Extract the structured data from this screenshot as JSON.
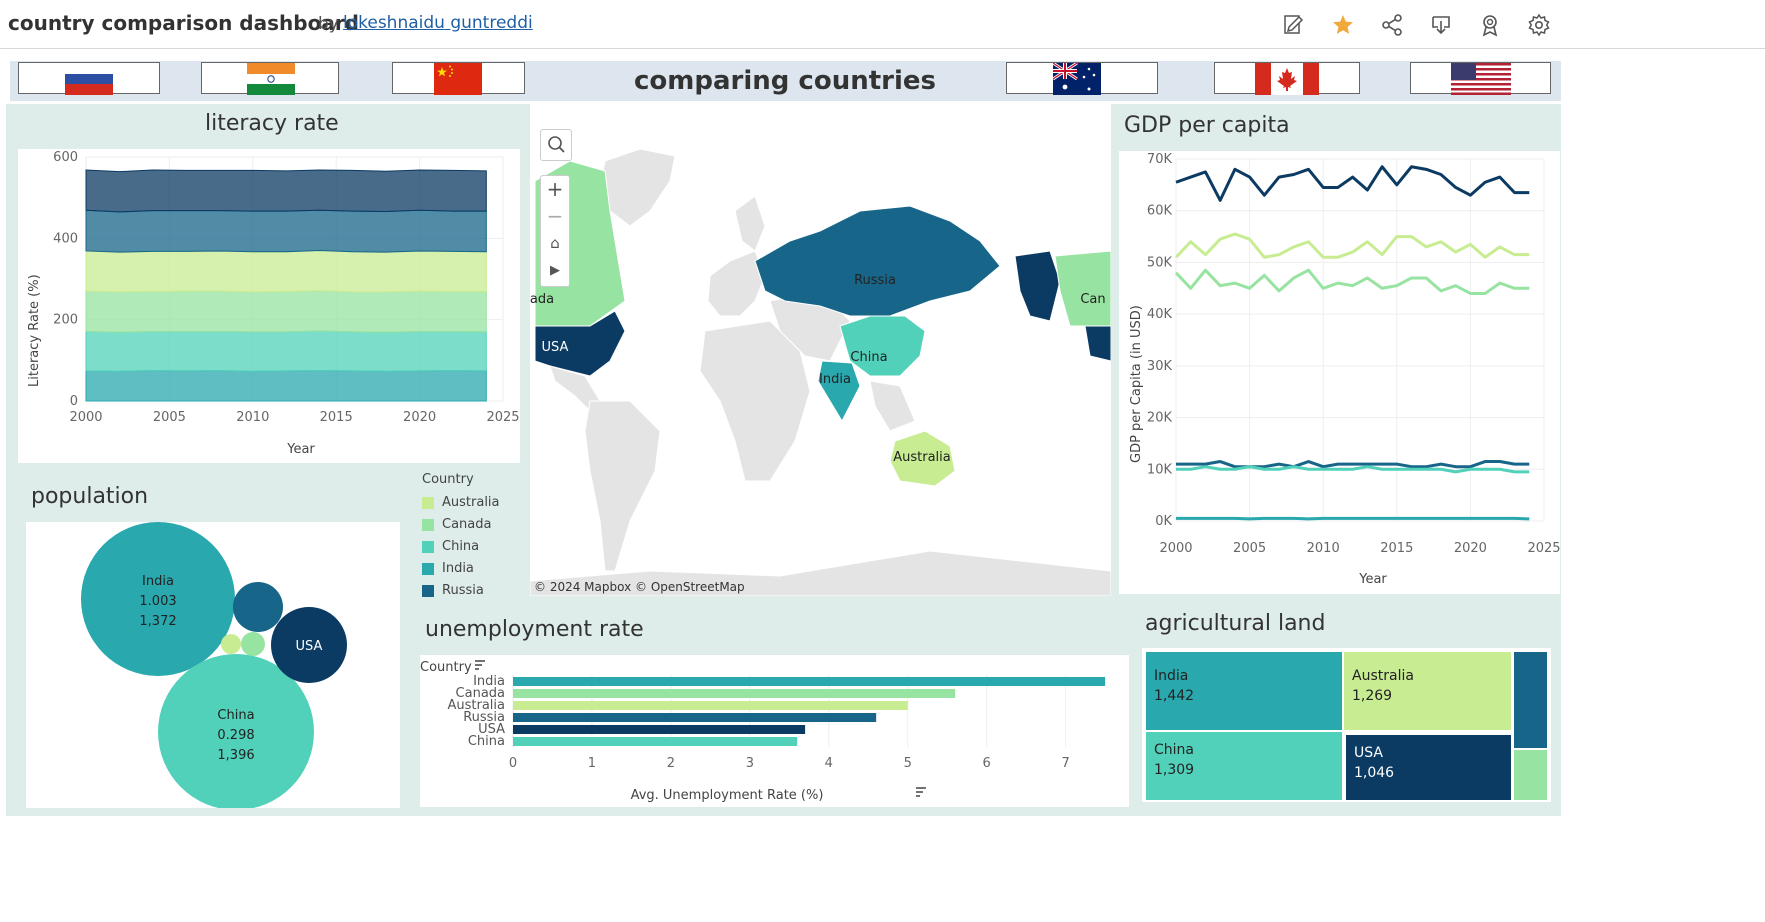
{
  "header": {
    "title": "country comparison dashboard",
    "by": "by",
    "author": "lokeshnaidu guntreddi"
  },
  "banner": {
    "title": "comparing countries"
  },
  "colors": {
    "Australia": "#c7ec92",
    "Canada": "#97e3a1",
    "China": "#52d1ba",
    "India": "#29a8ae",
    "Russia": "#17668a",
    "USA": "#0b3a63"
  },
  "literacy": {
    "title": "literacy rate",
    "xlabel": "Year",
    "ylabel": "Literacy Rate (%)",
    "yticks": [
      "0",
      "200",
      "400",
      "600"
    ],
    "xticks": [
      "2000",
      "2005",
      "2010",
      "2015",
      "2020",
      "2025"
    ]
  },
  "map": {
    "attribution": "© 2024 Mapbox  © OpenStreetMap",
    "labels": [
      "Russia",
      "China",
      "India",
      "Australia",
      "USA",
      "ada",
      "Can"
    ]
  },
  "gdp": {
    "title": "GDP per capita",
    "xlabel": "Year",
    "ylabel": "GDP per Capita (in USD)",
    "yticks": [
      "0K",
      "10K",
      "20K",
      "30K",
      "40K",
      "50K",
      "60K",
      "70K"
    ],
    "xticks": [
      "2000",
      "2005",
      "2010",
      "2015",
      "2020",
      "2025"
    ]
  },
  "population": {
    "title": "population",
    "bubbles": [
      {
        "name": "India",
        "line2": "1.003",
        "line3": "1,372"
      },
      {
        "name": "China",
        "line2": "0.298",
        "line3": "1,396"
      },
      {
        "name": "USA",
        "line2": "",
        "line3": ""
      }
    ]
  },
  "legend": {
    "title": "Country",
    "items": [
      "Australia",
      "Canada",
      "China",
      "India",
      "Russia"
    ]
  },
  "unemployment": {
    "title": "unemployment rate",
    "field": "Country",
    "xlabel": "Avg. Unemployment Rate (%)",
    "xticks": [
      "0",
      "1",
      "2",
      "3",
      "4",
      "5",
      "6",
      "7"
    ]
  },
  "agri": {
    "title": "agricultural land",
    "tiles": [
      {
        "name": "India",
        "value": "1,442"
      },
      {
        "name": "Australia",
        "value": "1,269"
      },
      {
        "name": "China",
        "value": "1,309"
      },
      {
        "name": "USA",
        "value": "1,046"
      }
    ]
  },
  "chart_data": [
    {
      "type": "area",
      "title": "literacy rate",
      "xlabel": "Year",
      "ylabel": "Literacy Rate (%)",
      "stacked": true,
      "ylim": [
        0,
        600
      ],
      "xlim": [
        2000,
        2025
      ],
      "x": [
        2000,
        2002,
        2004,
        2006,
        2008,
        2010,
        2012,
        2014,
        2016,
        2018,
        2020,
        2022,
        2024
      ],
      "series": [
        {
          "name": "India",
          "values": [
            74,
            73,
            75,
            74,
            75,
            73,
            74,
            75,
            74,
            73,
            74,
            75,
            74
          ]
        },
        {
          "name": "China",
          "values": [
            97,
            96,
            96,
            97,
            96,
            97,
            96,
            97,
            96,
            96,
            97,
            96,
            96
          ]
        },
        {
          "name": "Canada",
          "values": [
            99,
            99,
            98,
            99,
            99,
            98,
            99,
            99,
            98,
            99,
            99,
            98,
            99
          ]
        },
        {
          "name": "Australia",
          "values": [
            99,
            98,
            99,
            98,
            99,
            99,
            98,
            99,
            99,
            98,
            99,
            99,
            98
          ]
        },
        {
          "name": "Russia",
          "values": [
            100,
            99,
            100,
            100,
            99,
            100,
            100,
            99,
            100,
            100,
            100,
            99,
            100
          ]
        },
        {
          "name": "USA",
          "values": [
            99,
            99,
            100,
            99,
            99,
            100,
            99,
            99,
            100,
            99,
            99,
            100,
            99
          ]
        }
      ]
    },
    {
      "type": "line",
      "title": "GDP per capita",
      "xlabel": "Year",
      "ylabel": "GDP per Capita (in USD)",
      "ylim": [
        0,
        70000
      ],
      "xlim": [
        2000,
        2025
      ],
      "x": [
        2000,
        2001,
        2002,
        2003,
        2004,
        2005,
        2006,
        2007,
        2008,
        2009,
        2010,
        2011,
        2012,
        2013,
        2014,
        2015,
        2016,
        2017,
        2018,
        2019,
        2020,
        2021,
        2022,
        2023,
        2024
      ],
      "series": [
        {
          "name": "USA",
          "values": [
            65500,
            66500,
            67500,
            62000,
            68000,
            66500,
            63000,
            66500,
            67000,
            68000,
            64500,
            64500,
            66500,
            64000,
            68500,
            65000,
            68500,
            68000,
            67000,
            64500,
            63000,
            65500,
            66500,
            63500,
            63500
          ]
        },
        {
          "name": "Australia",
          "values": [
            51000,
            54000,
            51500,
            54500,
            55500,
            54500,
            51000,
            51500,
            53000,
            54000,
            51000,
            51000,
            52000,
            54000,
            51500,
            55000,
            55000,
            53000,
            54000,
            52000,
            53500,
            51000,
            53000,
            51500,
            51500
          ]
        },
        {
          "name": "Canada",
          "values": [
            48000,
            45000,
            48500,
            45500,
            46000,
            45000,
            47500,
            44500,
            47000,
            48500,
            45000,
            46000,
            45500,
            47000,
            45000,
            45500,
            47000,
            47000,
            44500,
            45500,
            44000,
            44000,
            46000,
            45000,
            45000
          ]
        },
        {
          "name": "Russia",
          "values": [
            11000,
            11000,
            11000,
            11500,
            10500,
            10500,
            10500,
            11000,
            10500,
            11500,
            10500,
            11000,
            11000,
            11000,
            11000,
            11000,
            10500,
            10500,
            11000,
            10500,
            10500,
            11500,
            11500,
            11000,
            11000
          ]
        },
        {
          "name": "China",
          "values": [
            10000,
            10000,
            10500,
            10000,
            10000,
            10500,
            10000,
            10000,
            10500,
            10000,
            10000,
            10000,
            10000,
            10500,
            10000,
            10000,
            10000,
            10000,
            10000,
            9500,
            10000,
            10000,
            10000,
            9500,
            9500
          ]
        },
        {
          "name": "India",
          "values": [
            500,
            500,
            500,
            500,
            500,
            400,
            500,
            500,
            500,
            400,
            500,
            500,
            500,
            500,
            500,
            500,
            500,
            500,
            500,
            500,
            500,
            500,
            500,
            500,
            400
          ]
        }
      ]
    },
    {
      "type": "bar",
      "orientation": "horizontal",
      "title": "unemployment rate",
      "xlabel": "Avg. Unemployment Rate (%)",
      "xlim": [
        0,
        7.6
      ],
      "categories": [
        "India",
        "Canada",
        "Australia",
        "Russia",
        "USA",
        "China"
      ],
      "values": [
        7.5,
        5.6,
        5.0,
        4.6,
        3.7,
        3.6
      ]
    }
  ]
}
